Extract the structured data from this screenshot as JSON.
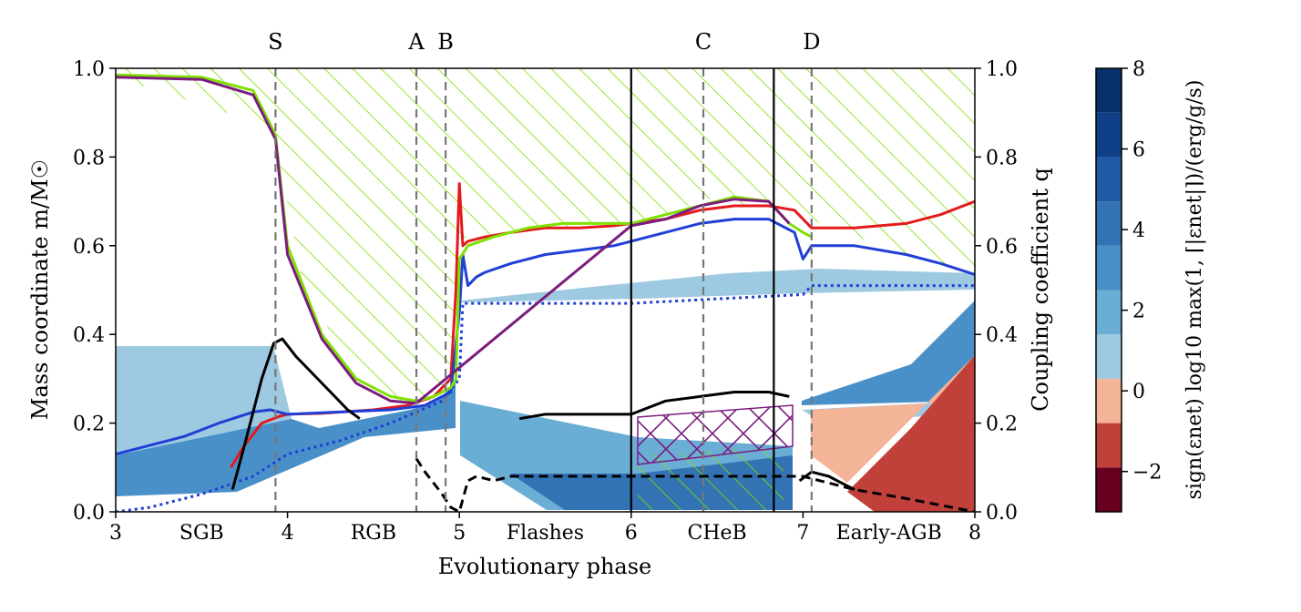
{
  "chart_data": {
    "type": "line",
    "xlabel": "Evolutionary phase",
    "ylabel_left": "Mass coordinate m/M☉",
    "ylabel_right": "Coupling coefficient q",
    "xlim": [
      3,
      8
    ],
    "ylim_left": [
      0.0,
      1.0
    ],
    "ylim_right": [
      0.0,
      1.0
    ],
    "xticks": [
      "3",
      "4",
      "5",
      "6",
      "7",
      "8"
    ],
    "yticks_left": [
      "0.0",
      "0.2",
      "0.4",
      "0.6",
      "0.8",
      "1.0"
    ],
    "yticks_right": [
      "0.0",
      "0.2",
      "0.4",
      "0.6",
      "0.8",
      "1.0"
    ],
    "phase_labels": [
      {
        "text": "SGB",
        "x": 3.5
      },
      {
        "text": "RGB",
        "x": 4.5
      },
      {
        "text": "Flashes",
        "x": 5.5
      },
      {
        "text": "CHeB",
        "x": 6.5
      },
      {
        "text": "Early-AGB",
        "x": 7.5
      }
    ],
    "markers": [
      {
        "label": "S",
        "x": 3.93
      },
      {
        "label": "A",
        "x": 4.75
      },
      {
        "label": "B",
        "x": 4.92
      },
      {
        "label": "C",
        "x": 6.42
      },
      {
        "label": "D",
        "x": 7.05
      }
    ],
    "phase_boundaries": [
      6.0,
      6.83
    ],
    "series": [
      {
        "name": "red",
        "color": "#e41a1c",
        "x": [
          3.67,
          3.75,
          3.85,
          3.95,
          4.0,
          4.2,
          4.5,
          4.7,
          4.85,
          4.95,
          4.98,
          5.0,
          5.02,
          5.05,
          5.15,
          5.3,
          5.5,
          5.7,
          5.9,
          6.0,
          6.2,
          6.4,
          6.6,
          6.8,
          6.95,
          7.05,
          7.3,
          7.6,
          7.8,
          8.0
        ],
        "y": [
          0.1,
          0.15,
          0.2,
          0.215,
          0.22,
          0.222,
          0.23,
          0.24,
          0.26,
          0.3,
          0.5,
          0.74,
          0.6,
          0.61,
          0.62,
          0.63,
          0.64,
          0.64,
          0.645,
          0.65,
          0.66,
          0.68,
          0.69,
          0.69,
          0.68,
          0.64,
          0.64,
          0.65,
          0.67,
          0.7
        ]
      },
      {
        "name": "blue",
        "color": "#1f3fd6",
        "x": [
          3.0,
          3.2,
          3.4,
          3.6,
          3.8,
          3.9,
          4.0,
          4.3,
          4.6,
          4.8,
          4.95,
          5.0,
          5.02,
          5.05,
          5.1,
          5.15,
          5.3,
          5.5,
          5.7,
          5.9,
          6.0,
          6.2,
          6.4,
          6.6,
          6.8,
          6.95,
          7.0,
          7.05,
          7.3,
          7.6,
          7.8,
          8.0
        ],
        "y": [
          0.13,
          0.15,
          0.17,
          0.2,
          0.225,
          0.23,
          0.22,
          0.225,
          0.23,
          0.24,
          0.27,
          0.45,
          0.58,
          0.51,
          0.53,
          0.54,
          0.56,
          0.58,
          0.59,
          0.6,
          0.61,
          0.63,
          0.65,
          0.66,
          0.66,
          0.63,
          0.57,
          0.6,
          0.6,
          0.58,
          0.56,
          0.535
        ]
      },
      {
        "name": "blue-dotted",
        "color": "#1f3fd6",
        "dashed": true,
        "x": [
          3.0,
          3.2,
          3.5,
          3.8,
          4.0,
          4.3,
          4.6,
          4.9,
          5.0,
          5.02,
          5.1,
          5.5,
          6.0,
          6.5,
          7.0,
          7.05,
          7.5,
          8.0
        ],
        "y": [
          0.0,
          0.01,
          0.04,
          0.08,
          0.13,
          0.16,
          0.2,
          0.25,
          0.3,
          0.47,
          0.47,
          0.47,
          0.47,
          0.48,
          0.49,
          0.51,
          0.51,
          0.51
        ]
      },
      {
        "name": "black",
        "color": "#000000",
        "x": [
          3.68,
          3.75,
          3.85,
          3.92,
          3.97,
          4.05,
          4.15,
          4.25,
          4.35,
          4.42
        ],
        "y": [
          0.05,
          0.15,
          0.3,
          0.38,
          0.39,
          0.35,
          0.31,
          0.27,
          0.23,
          0.21
        ]
      },
      {
        "name": "black-mid",
        "color": "#000000",
        "x": [
          5.35,
          5.5,
          5.7,
          5.9,
          6.0,
          6.2,
          6.4,
          6.6,
          6.8,
          6.92
        ],
        "y": [
          0.21,
          0.22,
          0.22,
          0.22,
          0.22,
          0.25,
          0.26,
          0.27,
          0.27,
          0.26
        ]
      },
      {
        "name": "black-dashed",
        "color": "#000000",
        "dashed": true,
        "x": [
          4.75,
          4.8,
          4.9,
          4.95,
          5.0,
          5.05,
          5.1,
          5.2,
          5.3,
          7.0,
          7.1,
          7.3,
          7.6,
          8.0
        ],
        "y": [
          0.12,
          0.09,
          0.04,
          0.01,
          0.0,
          0.07,
          0.08,
          0.07,
          0.08,
          0.08,
          0.07,
          0.05,
          0.03,
          0.0
        ]
      },
      {
        "name": "black-tail",
        "color": "#000000",
        "x": [
          6.98,
          7.05,
          7.15,
          7.25,
          7.3
        ],
        "y": [
          0.07,
          0.09,
          0.08,
          0.06,
          0.05
        ]
      },
      {
        "name": "green-boundary",
        "color": "#7fe000",
        "x": [
          3.0,
          3.5,
          3.8,
          3.93,
          4.0,
          4.2,
          4.4,
          4.6,
          4.75,
          4.85,
          4.9,
          4.95,
          4.98,
          5.0,
          5.05,
          5.2,
          5.4,
          5.6,
          5.8,
          6.0,
          6.2,
          6.4,
          6.6,
          6.8,
          6.92,
          7.0,
          7.05
        ],
        "y": [
          0.985,
          0.98,
          0.95,
          0.85,
          0.6,
          0.4,
          0.3,
          0.26,
          0.25,
          0.26,
          0.27,
          0.28,
          0.3,
          0.57,
          0.6,
          0.62,
          0.64,
          0.65,
          0.65,
          0.65,
          0.67,
          0.69,
          0.71,
          0.7,
          0.65,
          0.63,
          0.62
        ]
      },
      {
        "name": "purple",
        "color": "#7b1c7e",
        "x": [
          3.0,
          3.5,
          3.8,
          3.93,
          4.0,
          4.2,
          4.4,
          4.6,
          4.75,
          6.0,
          6.2,
          6.4,
          6.6,
          6.8,
          6.92
        ],
        "y": [
          0.98,
          0.975,
          0.94,
          0.84,
          0.58,
          0.39,
          0.29,
          0.25,
          0.245,
          0.645,
          0.66,
          0.69,
          0.705,
          0.7,
          0.65
        ]
      }
    ],
    "colorbar": {
      "label": "sign(εnet) log10 max(1, ⌈|εnet|⌉)/(erg/g/s)",
      "ticks": [
        "8",
        "6",
        "4",
        "2",
        "0",
        "−2"
      ],
      "range": [
        -3,
        8
      ],
      "colors": [
        "#67001f",
        "#c1403a",
        "#f4b498",
        "#9ecae1",
        "#6aaed6",
        "#4a90c8",
        "#3473b3",
        "#1f5aa6",
        "#0f3f86",
        "#08306b"
      ]
    }
  }
}
